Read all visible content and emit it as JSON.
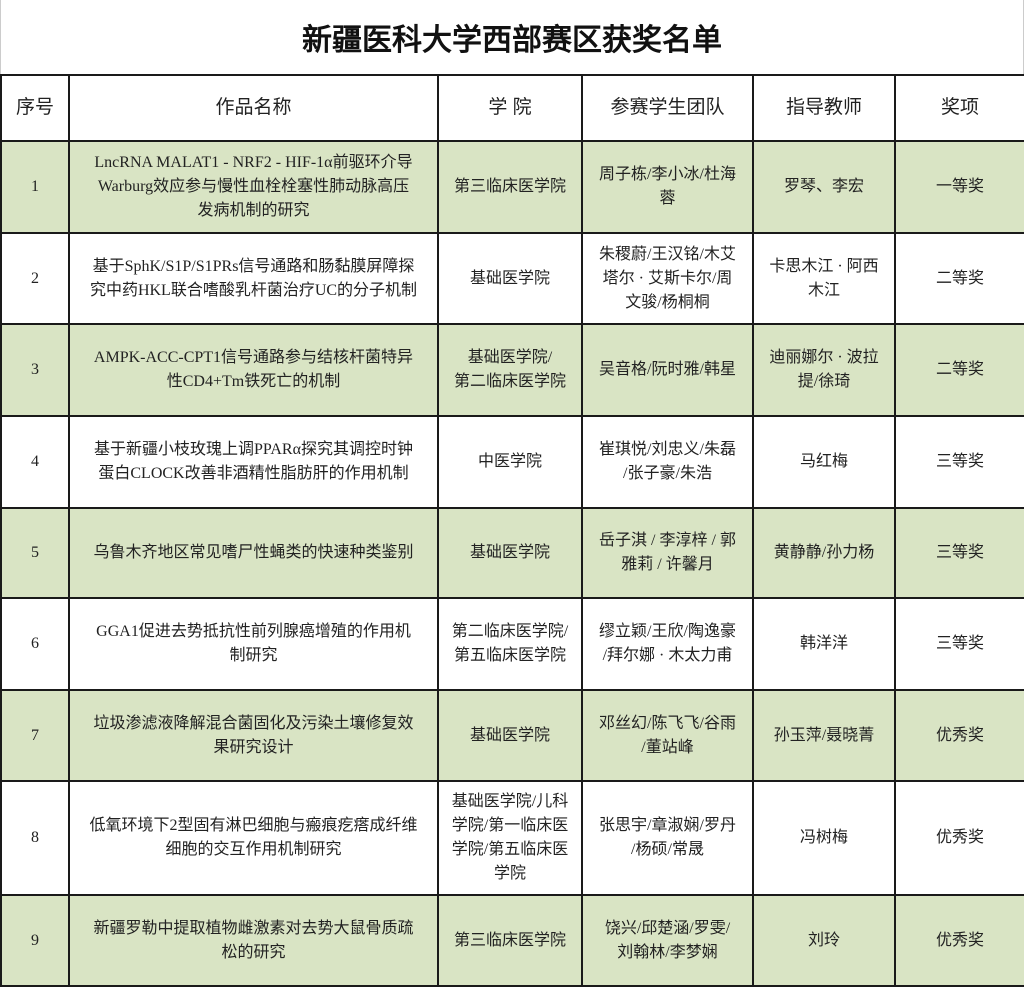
{
  "title": "新疆医科大学西部赛区获奖名单",
  "colors": {
    "row_highlight": "#d9e4c4",
    "border": "#1a1a1a"
  },
  "headers": [
    "序号",
    "作品名称",
    "学 院",
    "参赛学生团队",
    "指导教师",
    "奖项"
  ],
  "rows": [
    {
      "no": "1",
      "title": "LncRNA MALAT1 - NRF2 - HIF-1α前驱环介导\nWarburg效应参与慢性血栓栓塞性肺动脉高压\n发病机制的研究",
      "college": "第三临床医学院",
      "team": "周子栋/李小冰/杜海\n蓉",
      "advisor": "罗琴、李宏",
      "award": "一等奖"
    },
    {
      "no": "2",
      "title": "基于SphK/S1P/S1PRs信号通路和肠黏膜屏障探\n究中药HKL联合嗜酸乳杆菌治疗UC的分子机制",
      "college": "基础医学院",
      "team": "朱稷蔚/王汉铭/木艾\n塔尔 · 艾斯卡尔/周\n文骏/杨桐桐",
      "advisor": "卡思木江 · 阿西\n木江",
      "award": "二等奖"
    },
    {
      "no": "3",
      "title": "AMPK-ACC-CPT1信号通路参与结核杆菌特异\n性CD4+Tm铁死亡的机制",
      "college": "基础医学院/\n第二临床医学院",
      "team": "吴音格/阮时雅/韩星",
      "advisor": "迪丽娜尔 · 波拉\n提/徐琦",
      "award": "二等奖"
    },
    {
      "no": "4",
      "title": "基于新疆小枝玫瑰上调PPARα探究其调控时钟\n蛋白CLOCK改善非酒精性脂肪肝的作用机制",
      "college": "中医学院",
      "team": "崔琪悦/刘忠义/朱磊\n/张子豪/朱浩",
      "advisor": "马红梅",
      "award": "三等奖"
    },
    {
      "no": "5",
      "title": "乌鲁木齐地区常见嗜尸性蝇类的快速种类鉴别",
      "college": "基础医学院",
      "team": "岳子淇 / 李淳梓 / 郭\n雅莉 / 许馨月",
      "advisor": "黄静静/孙力杨",
      "award": "三等奖"
    },
    {
      "no": "6",
      "title": "GGA1促进去势抵抗性前列腺癌增殖的作用机\n制研究",
      "college": "第二临床医学院/\n第五临床医学院",
      "team": "缪立颖/王欣/陶逸豪\n/拜尔娜 · 木太力甫",
      "advisor": "韩洋洋",
      "award": "三等奖"
    },
    {
      "no": "7",
      "title": "垃圾渗滤液降解混合菌固化及污染土壤修复效\n果研究设计",
      "college": "基础医学院",
      "team": "邓丝幻/陈飞飞/谷雨\n/董站峰",
      "advisor": "孙玉萍/聂晓菁",
      "award": "优秀奖"
    },
    {
      "no": "8",
      "title": "低氧环境下2型固有淋巴细胞与瘢痕疙瘩成纤维\n细胞的交互作用机制研究",
      "college": "基础医学院/儿科\n学院/第一临床医\n学院/第五临床医\n学院",
      "team": "张思宇/章淑娴/罗丹\n/杨硕/常晟",
      "advisor": "冯树梅",
      "award": "优秀奖"
    },
    {
      "no": "9",
      "title": "新疆罗勒中提取植物雌激素对去势大鼠骨质疏\n松的研究",
      "college": "第三临床医学院",
      "team": "饶兴/邱楚涵/罗雯/\n刘翰林/李梦娴",
      "advisor": "刘玲",
      "award": "优秀奖"
    }
  ]
}
